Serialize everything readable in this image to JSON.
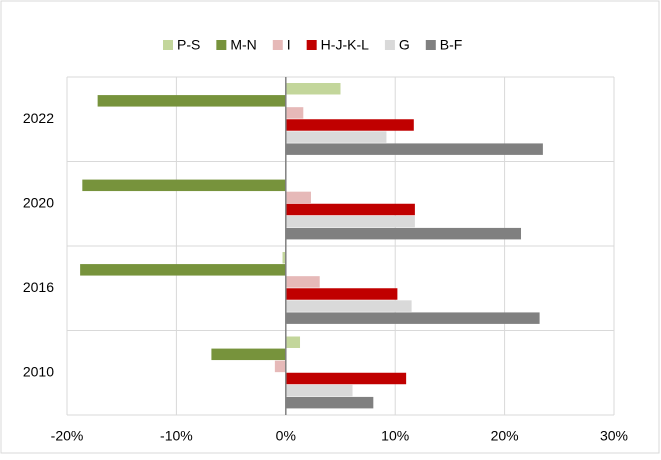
{
  "chart_data": {
    "type": "hbar",
    "categories": [
      "2022",
      "2020",
      "2016",
      "2010"
    ],
    "series": [
      {
        "name": "P-S",
        "color": "#c3d69b",
        "values": [
          5.0,
          0,
          -0.3,
          1.3
        ]
      },
      {
        "name": "M-N",
        "color": "#77933c",
        "values": [
          -17.2,
          -18.6,
          -18.8,
          -6.8
        ]
      },
      {
        "name": "I",
        "color": "#e6b9b8",
        "values": [
          1.6,
          2.3,
          3.1,
          -1.0
        ]
      },
      {
        "name": "H-J-K-L",
        "color": "#c00000",
        "values": [
          11.7,
          11.8,
          10.2,
          11.0
        ]
      },
      {
        "name": "G",
        "color": "#d9d9d9",
        "values": [
          9.2,
          11.8,
          11.5,
          6.1
        ]
      },
      {
        "name": "B-F",
        "color": "#808080",
        "values": [
          23.5,
          21.5,
          23.2,
          8.0
        ]
      }
    ],
    "xlim": [
      -20,
      30
    ],
    "xticks": [
      {
        "value": -20,
        "label": "-20%"
      },
      {
        "value": -10,
        "label": "-10%"
      },
      {
        "value": 0,
        "label": "0%"
      },
      {
        "value": 10,
        "label": "10%"
      },
      {
        "value": 20,
        "label": "20%"
      },
      {
        "value": 30,
        "label": "30%"
      }
    ],
    "grid": true,
    "legend": "top"
  }
}
